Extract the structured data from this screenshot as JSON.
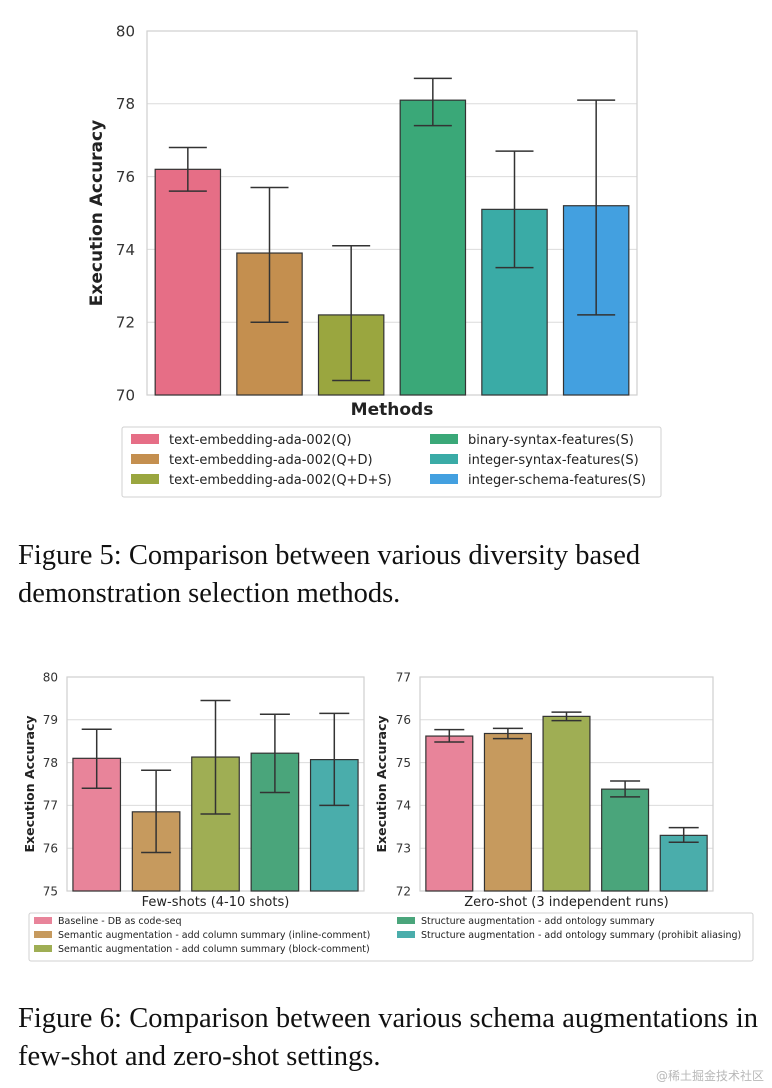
{
  "figure5": {
    "caption": "Figure 5: Comparison between various diversity based demonstration selection methods.",
    "chart_data": {
      "type": "bar",
      "title": "",
      "xlabel": "Methods",
      "ylabel": "Execution Accuracy",
      "ylim": [
        70,
        80
      ],
      "yticks": [
        70,
        72,
        74,
        76,
        78,
        80
      ],
      "grid": true,
      "legend_position": "bottom",
      "categories": [
        "text-embedding-ada-002(Q)",
        "text-embedding-ada-002(Q+D)",
        "text-embedding-ada-002(Q+D+S)",
        "binary-syntax-features(S)",
        "integer-syntax-features(S)",
        "integer-schema-features(S)"
      ],
      "values": [
        76.2,
        73.9,
        72.2,
        78.1,
        75.1,
        75.2
      ],
      "err_low": [
        75.6,
        72.0,
        70.4,
        77.4,
        73.5,
        72.2
      ],
      "err_high": [
        76.8,
        75.7,
        74.1,
        78.7,
        76.7,
        78.1
      ],
      "colors": [
        "#e66e86",
        "#c48f4f",
        "#9aa63f",
        "#3aa878",
        "#3aaba6",
        "#43a0e0"
      ]
    }
  },
  "figure6": {
    "caption": "Figure 6: Comparison between various schema augmentations in few-shot and zero-shot settings.",
    "legend": [
      "Baseline - DB as code-seq",
      "Semantic augmentation - add column summary (inline-comment)",
      "Semantic augmentation - add column summary (block-comment)",
      "Structure augmentation - add ontology summary",
      "Structure augmentation - add ontology summary (prohibit aliasing)"
    ],
    "chart_data": [
      {
        "type": "bar",
        "title": "",
        "xlabel": "Few-shots (4-10 shots)",
        "ylabel": "Execution Accuracy",
        "ylim": [
          75,
          80
        ],
        "yticks": [
          75,
          76,
          77,
          78,
          79,
          80
        ],
        "grid": true,
        "categories": [
          "Baseline - DB as code-seq",
          "Semantic augmentation - add column summary (inline-comment)",
          "Semantic augmentation - add column summary (block-comment)",
          "Structure augmentation - add ontology summary",
          "Structure augmentation - add ontology summary (prohibit aliasing)"
        ],
        "values": [
          78.1,
          76.85,
          78.13,
          78.22,
          78.07
        ],
        "err_low": [
          77.4,
          75.9,
          76.8,
          77.3,
          77.0
        ],
        "err_high": [
          78.78,
          77.82,
          79.45,
          79.13,
          79.15
        ],
        "colors": [
          "#e8849a",
          "#c69a5e",
          "#9fae54",
          "#4aa57b",
          "#4aadab"
        ]
      },
      {
        "type": "bar",
        "title": "",
        "xlabel": "Zero-shot (3 independent runs)",
        "ylabel": "Execution Accuracy",
        "ylim": [
          72,
          77
        ],
        "yticks": [
          72,
          73,
          74,
          75,
          76,
          77
        ],
        "grid": true,
        "categories": [
          "Baseline - DB as code-seq",
          "Semantic augmentation - add column summary (inline-comment)",
          "Semantic augmentation - add column summary (block-comment)",
          "Structure augmentation - add ontology summary",
          "Structure augmentation - add ontology summary (prohibit aliasing)"
        ],
        "values": [
          75.62,
          75.68,
          76.08,
          74.38,
          73.3
        ],
        "err_low": [
          75.48,
          75.56,
          75.98,
          74.2,
          73.14
        ],
        "err_high": [
          75.77,
          75.8,
          76.18,
          74.57,
          73.48
        ],
        "colors": [
          "#e8849a",
          "#c69a5e",
          "#9fae54",
          "#4aa57b",
          "#4aadab"
        ]
      }
    ]
  },
  "watermark": "@稀土掘金技术社区"
}
